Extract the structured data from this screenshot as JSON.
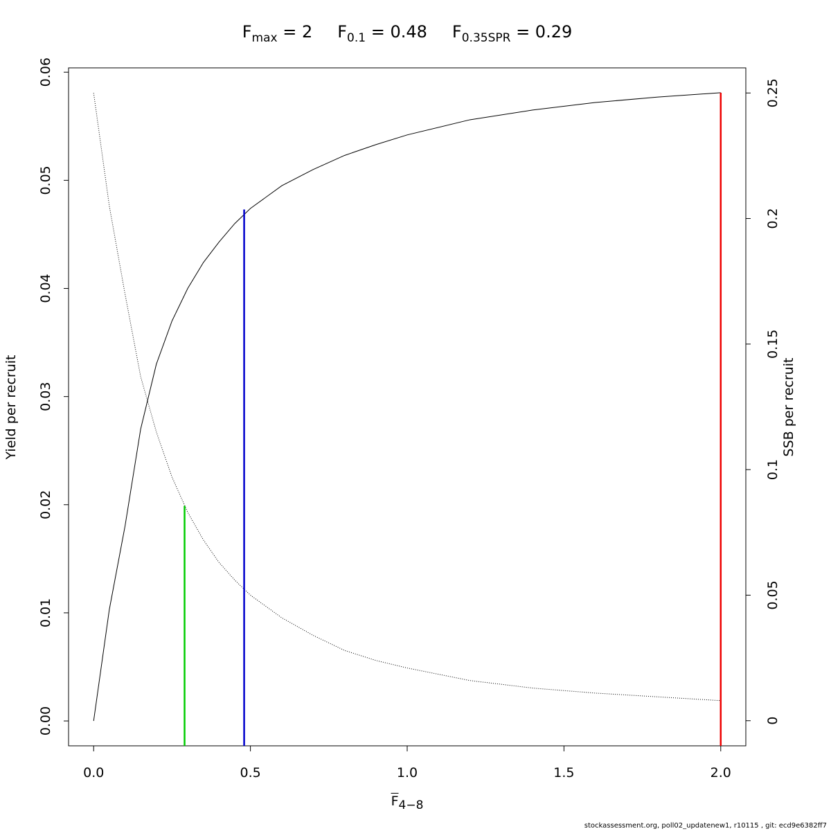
{
  "chart_data": {
    "type": "line",
    "title_parts": [
      {
        "main": "F",
        "sub": "max",
        "rest": " = 2"
      },
      {
        "main": "F",
        "sub": "0.1",
        "rest": " = 0.48"
      },
      {
        "main": "F",
        "sub": "0.35SPR",
        "rest": " = 0.29"
      }
    ],
    "x_label": {
      "main": "F",
      "sub": "4−8"
    },
    "y_label": "Yield per recruit",
    "y2_label": "SSB per recruit",
    "footer": "stockassessment.org, poll02_updatenew1, r10115 , git: ecd9e6382ff7",
    "x": [
      0,
      0.05,
      0.1,
      0.15,
      0.2,
      0.25,
      0.3,
      0.35,
      0.4,
      0.45,
      0.5,
      0.6,
      0.7,
      0.8,
      0.9,
      1.0,
      1.2,
      1.4,
      1.6,
      1.8,
      2.0
    ],
    "series": [
      {
        "name": "Yield per recruit",
        "color": "#000000",
        "style": "solid",
        "values": [
          0,
          0.0103,
          0.018,
          0.027,
          0.033,
          0.037,
          0.04,
          0.0424,
          0.0443,
          0.046,
          0.0474,
          0.0495,
          0.051,
          0.0523,
          0.0533,
          0.0542,
          0.0556,
          0.0565,
          0.0572,
          0.0577,
          0.0581
        ]
      },
      {
        "name": "SSB per recruit",
        "color": "#000000",
        "style": "dotted",
        "axis": "y2",
        "values": [
          0.25,
          0.205,
          0.17,
          0.137,
          0.115,
          0.097,
          0.083,
          0.072,
          0.063,
          0.056,
          0.05,
          0.041,
          0.034,
          0.028,
          0.024,
          0.021,
          0.016,
          0.013,
          0.011,
          0.0095,
          0.008
        ]
      }
    ],
    "reference_lines": [
      {
        "x": 0.29,
        "top": 0.0199,
        "color": "#00cc00"
      },
      {
        "x": 0.48,
        "top": 0.0473,
        "color": "#0000cc"
      },
      {
        "x": 2.0,
        "top": 0.0581,
        "color": "#ee0000"
      }
    ],
    "xlim": [
      -0.08,
      2.08
    ],
    "ylim": [
      -0.0023,
      0.0604
    ],
    "y2lim": [
      -0.01,
      0.26
    ],
    "xticks": [
      {
        "value": 0,
        "label": "0.0"
      },
      0.5,
      {
        "value": 1,
        "label": "1.0"
      },
      1.5,
      {
        "value": 2,
        "label": "2.0"
      }
    ],
    "yticks": [
      {
        "value": 0,
        "label": "0.00"
      },
      0.01,
      0.02,
      0.03,
      0.04,
      0.05,
      0.06
    ],
    "y2ticks": [
      0,
      0.05,
      0.1,
      0.15,
      0.2,
      0.25
    ]
  }
}
